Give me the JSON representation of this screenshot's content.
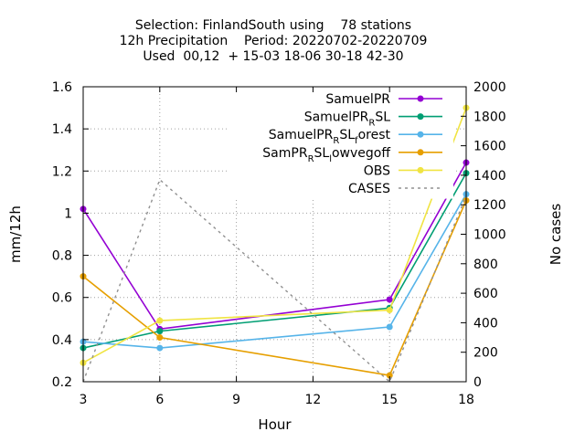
{
  "chart_data": {
    "type": "line",
    "title_lines": [
      "Selection: FinlandSouth using    78 stations",
      "12h Precipitation    Period: 20220702-20220709",
      "Used  00,12  + 15-03 18-06 30-18 42-30"
    ],
    "xlabel": "Hour",
    "ylabel": "mm/12h",
    "y2label": "No cases",
    "xlim": [
      3,
      18
    ],
    "ylim": [
      0.2,
      1.6
    ],
    "y2lim": [
      0,
      2000
    ],
    "xticks": [
      3,
      6,
      9,
      12,
      15,
      18
    ],
    "yticks": [
      0.2,
      0.4,
      0.6,
      0.8,
      1,
      1.2,
      1.4,
      1.6
    ],
    "y2ticks": [
      0,
      200,
      400,
      600,
      800,
      1000,
      1200,
      1400,
      1600,
      1800,
      2000
    ],
    "grid": true,
    "legend_position": "top-right",
    "series": [
      {
        "name": "SamuelPR",
        "label_main": "SamuelPR",
        "label_sub": "",
        "label_tail": "",
        "color": "#9400d3",
        "axis": "y1",
        "dash": false,
        "marker": true,
        "x": [
          3,
          6,
          15,
          18
        ],
        "y": [
          1.02,
          0.45,
          0.59,
          1.24
        ]
      },
      {
        "name": "SamuelPR_RSL",
        "label_main": "SamuelPR",
        "label_sub": "R",
        "label_tail": "SL",
        "color": "#009e73",
        "axis": "y1",
        "dash": false,
        "marker": true,
        "x": [
          3,
          6,
          15,
          18
        ],
        "y": [
          0.36,
          0.44,
          0.55,
          1.19
        ]
      },
      {
        "name": "SamuelPR_RSL_forest",
        "label_main": "SamuelPR",
        "label_sub": "R",
        "label_tail": "SL",
        "label_sub2": "f",
        "label_tail2": "orest",
        "color": "#56b4e9",
        "axis": "y1",
        "dash": false,
        "marker": true,
        "x": [
          3,
          6,
          15,
          18
        ],
        "y": [
          0.39,
          0.36,
          0.46,
          1.09
        ]
      },
      {
        "name": "SamPR_RSL_lowvegoff",
        "label_main": "SamPR",
        "label_sub": "R",
        "label_tail": "SL",
        "label_sub2": "l",
        "label_tail2": "owvegoff",
        "color": "#e69f00",
        "axis": "y1",
        "dash": false,
        "marker": true,
        "x": [
          3,
          6,
          15,
          18
        ],
        "y": [
          0.7,
          0.41,
          0.23,
          1.06
        ]
      },
      {
        "name": "OBS",
        "label_main": "OBS",
        "label_sub": "",
        "label_tail": "",
        "color": "#f0e442",
        "axis": "y1",
        "dash": false,
        "marker": true,
        "x": [
          3,
          6,
          15,
          18
        ],
        "y": [
          0.29,
          0.49,
          0.54,
          1.5
        ]
      },
      {
        "name": "CASES",
        "label_main": "CASES",
        "label_sub": "",
        "label_tail": "",
        "color": "#909090",
        "axis": "y2",
        "dash": true,
        "marker": false,
        "x": [
          3,
          6,
          15,
          18
        ],
        "y": [
          0,
          1370,
          0,
          1260
        ]
      }
    ]
  }
}
